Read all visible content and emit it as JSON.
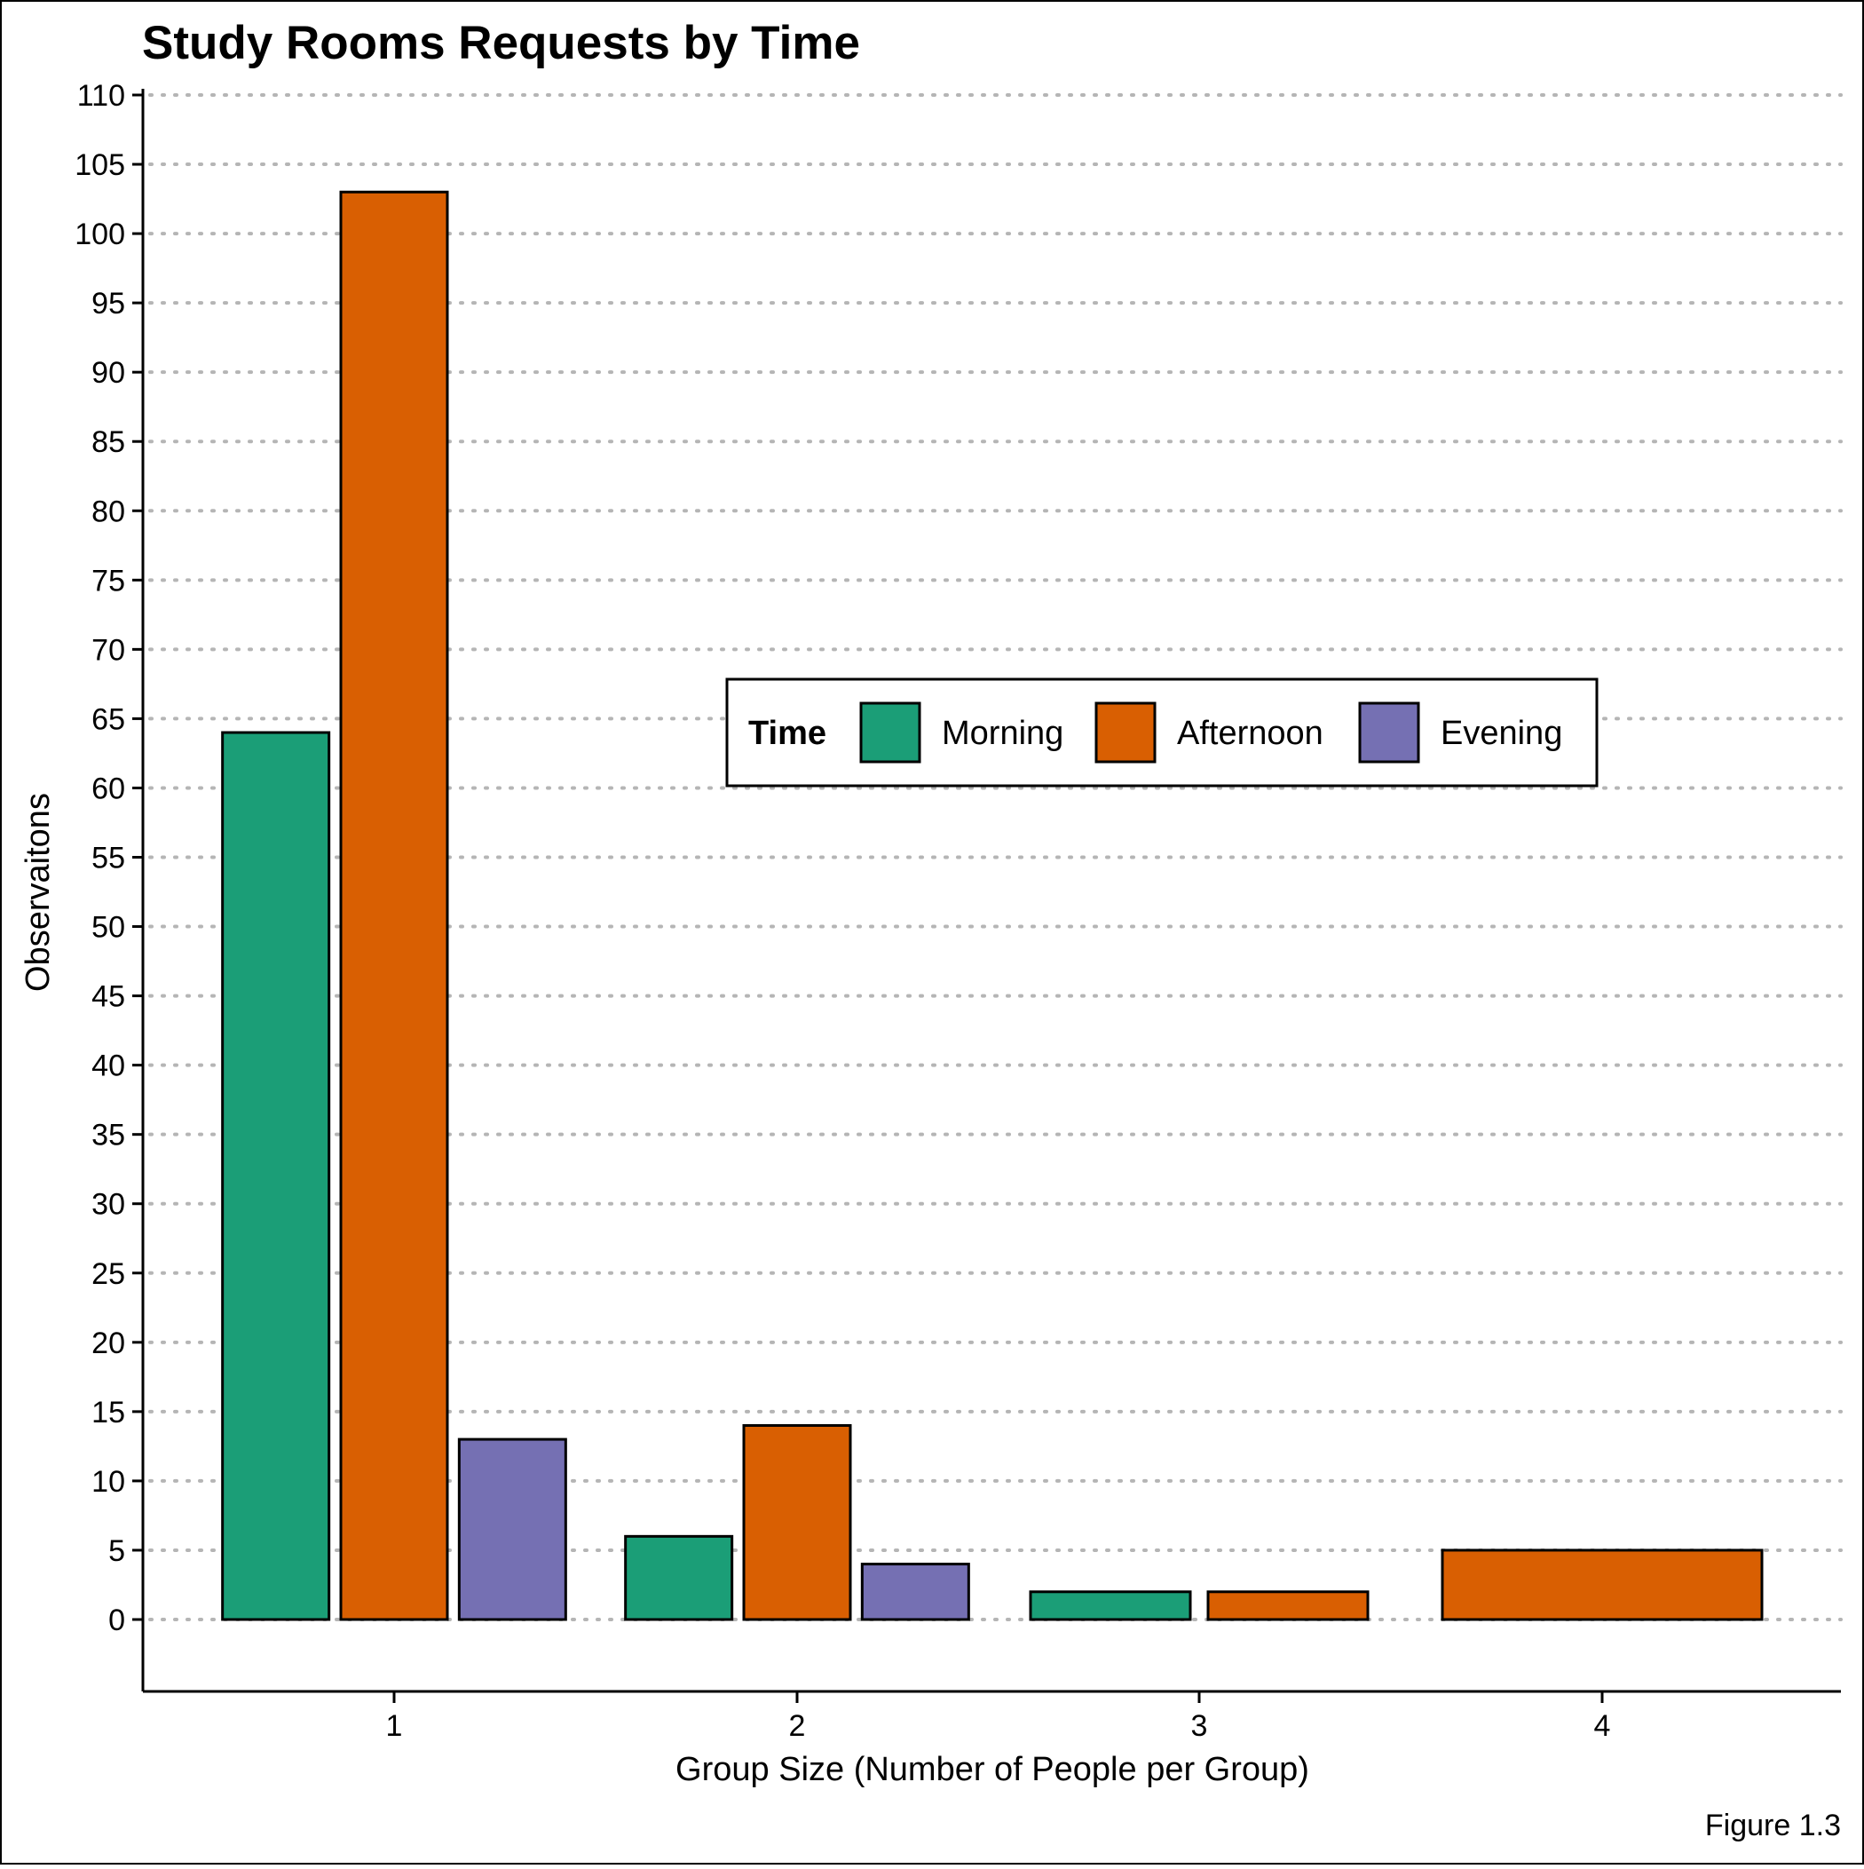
{
  "chart_data": {
    "type": "bar",
    "title": "Study Rooms Requests by Time",
    "xlabel": "Group Size (Number of People per Group)",
    "ylabel": "Observaitons",
    "caption": "Figure 1.3",
    "categories": [
      "1",
      "2",
      "3",
      "4"
    ],
    "ylim": [
      -5,
      110
    ],
    "yticks": [
      0,
      5,
      10,
      15,
      20,
      25,
      30,
      35,
      40,
      45,
      50,
      55,
      60,
      65,
      70,
      75,
      80,
      85,
      90,
      95,
      100,
      105,
      110
    ],
    "grid": "horizontal dotted",
    "legend": {
      "title": "Time",
      "placement": "inside-center-right",
      "entries": [
        "Morning",
        "Afternoon",
        "Evening"
      ]
    },
    "colors": {
      "Morning": "#1b9e77",
      "Afternoon": "#d95f02",
      "Evening": "#7570b3"
    },
    "series": [
      {
        "name": "Morning",
        "values": [
          64,
          6,
          2,
          null
        ]
      },
      {
        "name": "Afternoon",
        "values": [
          103,
          14,
          2,
          5
        ]
      },
      {
        "name": "Evening",
        "values": [
          13,
          4,
          null,
          null
        ]
      }
    ]
  }
}
